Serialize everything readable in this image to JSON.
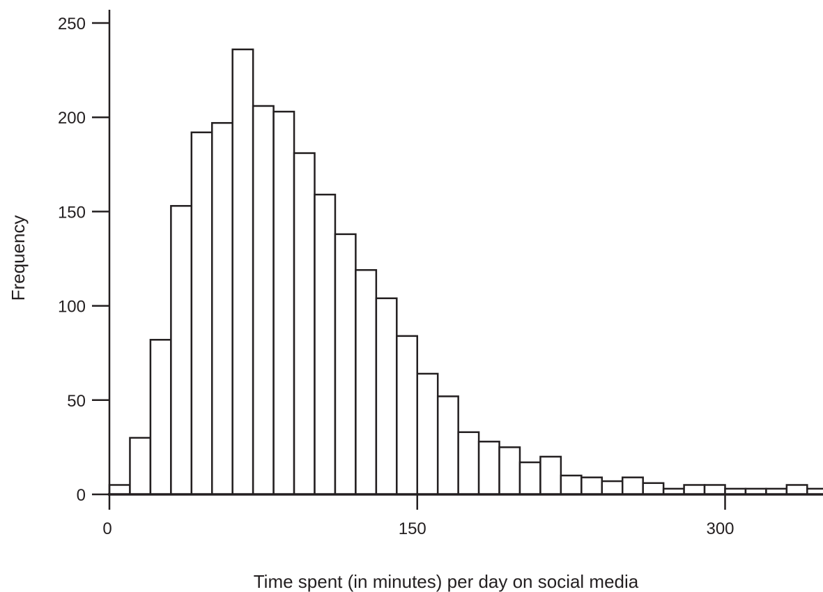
{
  "chart_data": {
    "type": "bar",
    "title": "",
    "xlabel": "Time spent (in minutes) per day on social media",
    "ylabel": "Frequency",
    "bin_width": 10,
    "x_start": 0,
    "values": [
      5,
      30,
      82,
      153,
      192,
      197,
      236,
      206,
      203,
      181,
      159,
      138,
      119,
      104,
      84,
      64,
      52,
      33,
      28,
      25,
      17,
      20,
      10,
      9,
      7,
      9,
      6,
      3,
      5,
      5,
      3,
      3,
      3,
      5,
      3
    ],
    "xlim": [
      0,
      335
    ],
    "ylim": [
      0,
      250
    ],
    "xticks": [
      0,
      150,
      300
    ],
    "yticks": [
      0,
      50,
      100,
      150,
      200,
      250
    ],
    "grid": false,
    "bar_fill": "#ffffff",
    "bar_stroke": "#231f20"
  }
}
